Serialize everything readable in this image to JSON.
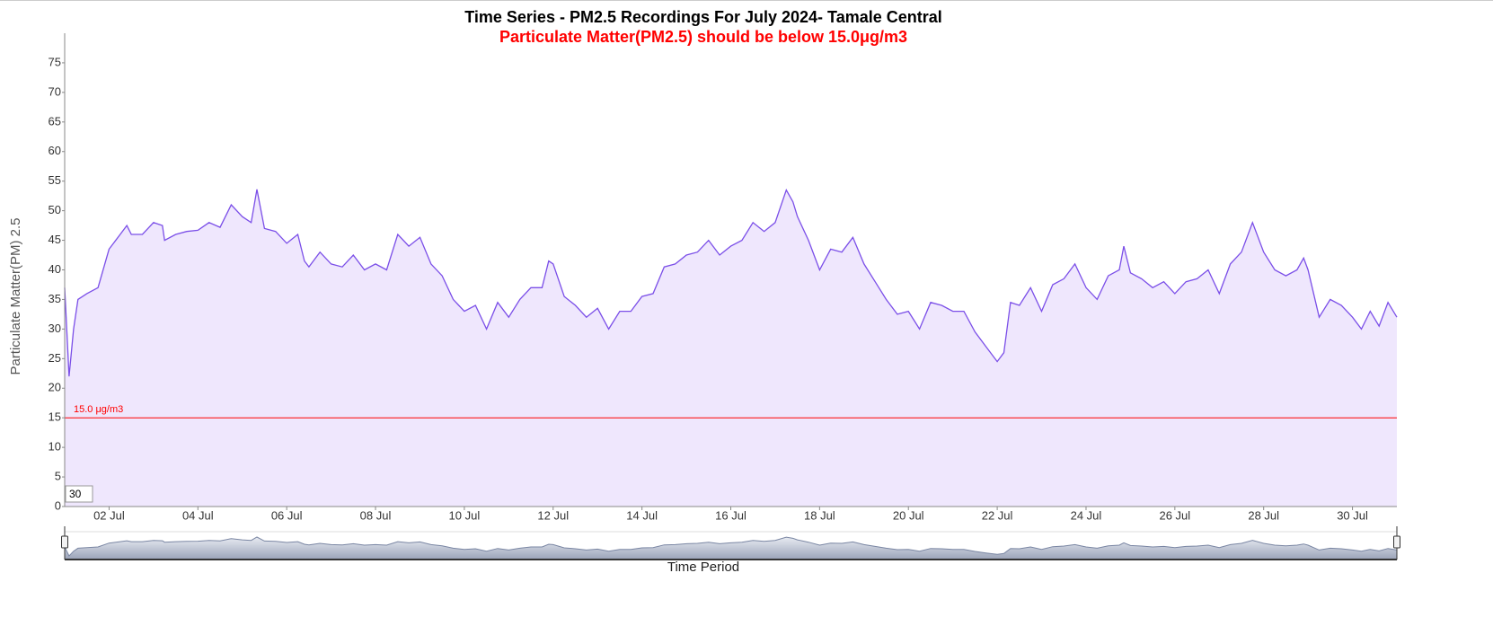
{
  "chart_data": {
    "type": "area",
    "title": "Time Series - PM2.5 Recordings For July 2024- Tamale Central",
    "subtitle": "Particulate Matter(PM2.5) should be below 15.0μg/m3",
    "y_label": "Particulate Matter(PM) 2.5",
    "x_label": "Time Period",
    "period_input": "30",
    "xlim": [
      1,
      31
    ],
    "ylim": [
      0,
      80
    ],
    "yticks": [
      0,
      5,
      10,
      15,
      20,
      25,
      30,
      35,
      40,
      45,
      50,
      55,
      60,
      65,
      70,
      75
    ],
    "xticks": [
      {
        "value": 2,
        "label": "02 Jul"
      },
      {
        "value": 4,
        "label": "04 Jul"
      },
      {
        "value": 6,
        "label": "06 Jul"
      },
      {
        "value": 8,
        "label": "08 Jul"
      },
      {
        "value": 10,
        "label": "10 Jul"
      },
      {
        "value": 12,
        "label": "12 Jul"
      },
      {
        "value": 14,
        "label": "14 Jul"
      },
      {
        "value": 16,
        "label": "16 Jul"
      },
      {
        "value": 18,
        "label": "18 Jul"
      },
      {
        "value": 20,
        "label": "20 Jul"
      },
      {
        "value": 22,
        "label": "22 Jul"
      },
      {
        "value": 24,
        "label": "24 Jul"
      },
      {
        "value": 26,
        "label": "26 Jul"
      },
      {
        "value": 28,
        "label": "28 Jul"
      },
      {
        "value": 30,
        "label": "30 Jul"
      }
    ],
    "threshold": {
      "value": 15,
      "label": "15.0 μg/m3",
      "color": "#ff0000"
    },
    "color": "#7b4fe8",
    "fill": "#efe7fd",
    "x": [
      1.0,
      1.1,
      1.2,
      1.3,
      1.5,
      1.75,
      2.0,
      2.25,
      2.4,
      2.5,
      2.75,
      3.0,
      3.2,
      3.25,
      3.5,
      3.75,
      4.0,
      4.25,
      4.5,
      4.75,
      5.0,
      5.2,
      5.33,
      5.5,
      5.75,
      6.0,
      6.25,
      6.4,
      6.5,
      6.75,
      7.0,
      7.25,
      7.5,
      7.75,
      8.0,
      8.25,
      8.5,
      8.75,
      9.0,
      9.25,
      9.5,
      9.75,
      10.0,
      10.25,
      10.5,
      10.75,
      11.0,
      11.25,
      11.5,
      11.75,
      11.9,
      12.0,
      12.25,
      12.5,
      12.75,
      13.0,
      13.25,
      13.5,
      13.75,
      14.0,
      14.25,
      14.5,
      14.75,
      15.0,
      15.25,
      15.5,
      15.75,
      16.0,
      16.25,
      16.5,
      16.75,
      17.0,
      17.25,
      17.4,
      17.5,
      17.75,
      18.0,
      18.25,
      18.5,
      18.75,
      19.0,
      19.25,
      19.5,
      19.75,
      20.0,
      20.25,
      20.5,
      20.75,
      21.0,
      21.25,
      21.5,
      21.75,
      22.0,
      22.15,
      22.3,
      22.5,
      22.75,
      23.0,
      23.25,
      23.5,
      23.75,
      24.0,
      24.25,
      24.5,
      24.75,
      24.85,
      25.0,
      25.25,
      25.5,
      25.75,
      26.0,
      26.25,
      26.5,
      26.75,
      27.0,
      27.25,
      27.5,
      27.75,
      28.0,
      28.25,
      28.5,
      28.75,
      28.9,
      29.0,
      29.25,
      29.5,
      29.75,
      30.0,
      30.2,
      30.4,
      30.6,
      30.8,
      31.0
    ],
    "values": [
      37,
      22,
      30,
      35,
      36,
      37,
      43.5,
      46,
      47.5,
      46,
      46,
      48,
      47.5,
      45,
      46,
      46.5,
      46.7,
      48,
      47.2,
      51,
      49,
      48,
      53.6,
      47,
      46.5,
      44.5,
      46,
      41.5,
      40.5,
      43,
      41,
      40.5,
      42.5,
      40,
      41,
      40,
      46,
      44,
      45.5,
      41,
      39,
      35,
      33,
      34,
      30,
      34.5,
      32,
      35,
      37,
      37,
      41.5,
      41,
      35.5,
      34,
      32,
      33.5,
      30,
      33,
      33,
      35.5,
      36,
      40.5,
      41,
      42.5,
      43,
      45,
      42.5,
      44,
      45,
      48,
      46.5,
      48,
      53.5,
      51.5,
      49,
      45,
      40,
      43.5,
      43,
      45.5,
      41,
      38,
      35,
      32.5,
      33,
      30,
      34.5,
      34,
      33,
      33,
      29.5,
      27,
      24.5,
      26,
      34.5,
      34,
      37,
      33,
      37.5,
      38.5,
      41,
      37,
      35,
      39,
      40,
      44,
      39.5,
      38.5,
      37,
      38,
      36,
      38,
      38.5,
      40,
      36,
      41,
      43,
      48,
      43,
      40,
      39,
      40,
      42,
      40,
      32,
      35,
      34,
      32,
      30,
      33,
      30.5,
      34.5,
      32
    ]
  }
}
